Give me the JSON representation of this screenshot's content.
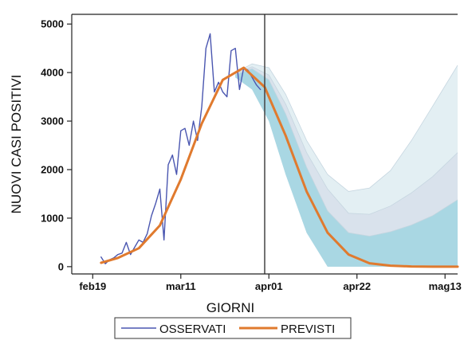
{
  "chart_data": {
    "type": "line",
    "xlabel": "GIORNI",
    "ylabel": "NUOVI CASI POSITIVI",
    "ylim": [
      -150,
      5200
    ],
    "xlim": [
      "2020-02-14",
      "2020-05-16"
    ],
    "x_ticks": [
      {
        "date": "2020-02-19",
        "label": "feb19"
      },
      {
        "date": "2020-03-11",
        "label": "mar11"
      },
      {
        "date": "2020-04-01",
        "label": "apr01"
      },
      {
        "date": "2020-04-22",
        "label": "apr22"
      },
      {
        "date": "2020-05-13",
        "label": "mag13"
      }
    ],
    "y_ticks": [
      0,
      1000,
      2000,
      3000,
      4000,
      5000
    ],
    "vertical_line": "2020-03-31",
    "legend_position": "bottom",
    "grid": false,
    "series": [
      {
        "name": "OSSERVATI",
        "color": "#4a56b0",
        "x": [
          "2020-02-21",
          "2020-02-22",
          "2020-02-23",
          "2020-02-24",
          "2020-02-25",
          "2020-02-26",
          "2020-02-27",
          "2020-02-28",
          "2020-02-29",
          "2020-03-01",
          "2020-03-02",
          "2020-03-03",
          "2020-03-04",
          "2020-03-05",
          "2020-03-06",
          "2020-03-07",
          "2020-03-08",
          "2020-03-09",
          "2020-03-10",
          "2020-03-11",
          "2020-03-12",
          "2020-03-13",
          "2020-03-14",
          "2020-03-15",
          "2020-03-16",
          "2020-03-17",
          "2020-03-18",
          "2020-03-19",
          "2020-03-20",
          "2020-03-21",
          "2020-03-22",
          "2020-03-23",
          "2020-03-24",
          "2020-03-25",
          "2020-03-26",
          "2020-03-27",
          "2020-03-28",
          "2020-03-29",
          "2020-03-30"
        ],
        "values": [
          200,
          60,
          140,
          180,
          250,
          280,
          500,
          250,
          400,
          550,
          500,
          680,
          1050,
          1300,
          1600,
          550,
          2100,
          2300,
          1900,
          2800,
          2850,
          2500,
          3000,
          2600,
          3300,
          4500,
          4800,
          3600,
          3800,
          3600,
          3500,
          4450,
          4500,
          3650,
          4100,
          4050,
          3900,
          3750,
          3650
        ]
      },
      {
        "name": "PREVISTI",
        "color": "#e07a2e",
        "x": [
          "2020-02-21",
          "2020-02-25",
          "2020-03-01",
          "2020-03-06",
          "2020-03-11",
          "2020-03-16",
          "2020-03-21",
          "2020-03-26",
          "2020-03-31",
          "2020-04-05",
          "2020-04-10",
          "2020-04-15",
          "2020-04-20",
          "2020-04-25",
          "2020-04-30",
          "2020-05-05",
          "2020-05-10",
          "2020-05-16"
        ],
        "values": [
          80,
          180,
          380,
          850,
          1800,
          2950,
          3850,
          4100,
          3700,
          2700,
          1550,
          700,
          250,
          70,
          20,
          5,
          0,
          0
        ]
      }
    ],
    "uncertainty_bands": [
      {
        "level": "outer",
        "color": "#e3eff3",
        "x": [
          "2020-03-24",
          "2020-03-28",
          "2020-04-01",
          "2020-04-05",
          "2020-04-10",
          "2020-04-15",
          "2020-04-20",
          "2020-04-25",
          "2020-04-30",
          "2020-05-05",
          "2020-05-10",
          "2020-05-16"
        ],
        "upper": [
          4000,
          4180,
          4100,
          3550,
          2600,
          1900,
          1550,
          1620,
          1980,
          2600,
          3300,
          4150
        ],
        "lower": [
          3900,
          3650,
          3000,
          1900,
          700,
          0,
          0,
          0,
          0,
          0,
          0,
          0
        ]
      },
      {
        "level": "middle",
        "color": "#d9e2ec",
        "x": [
          "2020-03-24",
          "2020-03-28",
          "2020-04-01",
          "2020-04-05",
          "2020-04-10",
          "2020-04-15",
          "2020-04-20",
          "2020-04-25",
          "2020-04-30",
          "2020-05-05",
          "2020-05-10",
          "2020-05-16"
        ],
        "upper": [
          3980,
          4120,
          3950,
          3350,
          2350,
          1600,
          1100,
          1080,
          1250,
          1520,
          1850,
          2350
        ],
        "lower": [
          3900,
          3650,
          3000,
          1900,
          700,
          0,
          0,
          0,
          0,
          0,
          0,
          0
        ]
      },
      {
        "level": "inner",
        "color": "#a9d7e3",
        "x": [
          "2020-03-24",
          "2020-03-28",
          "2020-04-01",
          "2020-04-05",
          "2020-04-10",
          "2020-04-15",
          "2020-04-20",
          "2020-04-25",
          "2020-04-30",
          "2020-05-05",
          "2020-05-10",
          "2020-05-16"
        ],
        "upper": [
          3960,
          4080,
          3850,
          3150,
          2050,
          1150,
          700,
          630,
          720,
          860,
          1050,
          1380
        ],
        "lower": [
          3900,
          3650,
          3000,
          1900,
          700,
          0,
          0,
          0,
          0,
          0,
          0,
          0
        ]
      }
    ]
  }
}
